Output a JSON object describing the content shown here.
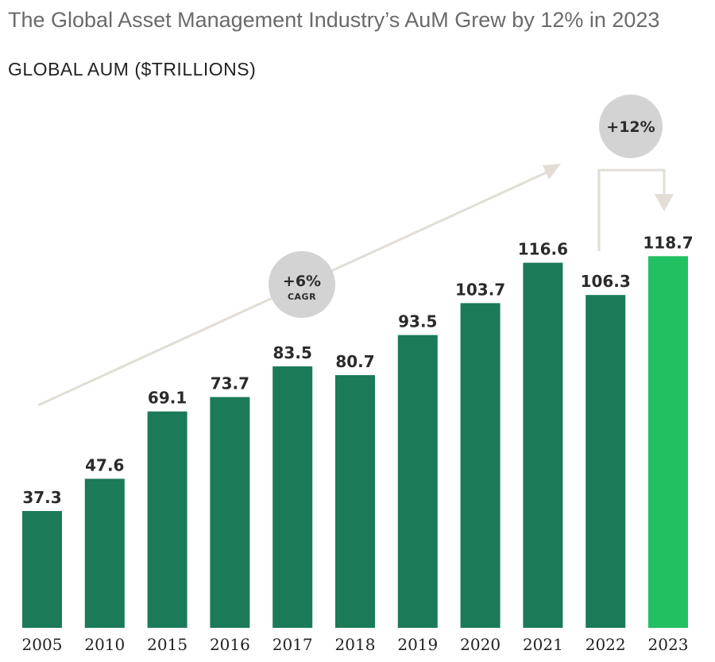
{
  "chart_data": {
    "type": "bar",
    "title": "The Global Asset Management Industry’s AuM Grew by 12% in 2023",
    "ylabel": "GLOBAL AUM ($TRILLIONS)",
    "xlabel": "",
    "categories": [
      "2005",
      "2010",
      "2015",
      "2016",
      "2017",
      "2018",
      "2019",
      "2020",
      "2021",
      "2022",
      "2023"
    ],
    "values": [
      37.3,
      47.6,
      69.1,
      73.7,
      83.5,
      80.7,
      93.5,
      103.7,
      116.6,
      106.3,
      118.7
    ],
    "value_labels": [
      "37.3",
      "47.6",
      "69.1",
      "73.7",
      "83.5",
      "80.7",
      "93.5",
      "103.7",
      "116.6",
      "106.3",
      "118.7"
    ],
    "highlight_category": "2023",
    "annotations": {
      "cagr_value": "+6%",
      "cagr_label": "CAGR",
      "growth_value": "+12%"
    },
    "colors": {
      "bar": "#1b7a57",
      "highlight": "#22c062",
      "arrow": "#e2ddd5",
      "badge": "#d3d3d3"
    }
  }
}
